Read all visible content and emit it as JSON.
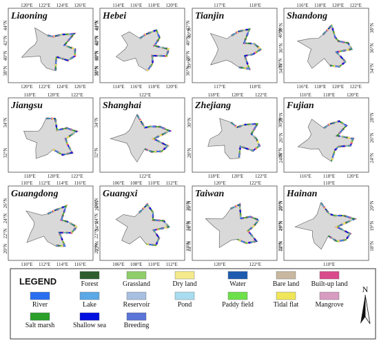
{
  "panels": [
    {
      "name": "Liaoning",
      "lon": [
        "120°E",
        "122°E",
        "124°E",
        "126°E"
      ],
      "lat": [
        "44°N",
        "42°N",
        "40°N",
        "38°N"
      ]
    },
    {
      "name": "Hebei",
      "lon": [
        "114°E",
        "116°E",
        "118°E",
        "120°E"
      ],
      "lat": [
        "42°N",
        "40°N",
        "38°N",
        "36°N"
      ]
    },
    {
      "name": "Tianjin",
      "lon": [
        "117°E",
        "118°E"
      ],
      "lat": [
        "40°N",
        "39°N"
      ]
    },
    {
      "name": "Shandong",
      "lon": [
        "116°E",
        "118°E",
        "120°E",
        "122°E"
      ],
      "lat": [
        "38°N",
        "36°N",
        "34°N"
      ]
    },
    {
      "name": "Jiangsu",
      "lon": [
        "118°E",
        "120°E",
        "122°E"
      ],
      "lat": [
        "34°N",
        "32°N"
      ]
    },
    {
      "name": "Shanghai",
      "lon": [
        "122°E"
      ],
      "lat": []
    },
    {
      "name": "Zhejiang",
      "lon": [
        "118°E",
        "120°E",
        "122°E"
      ],
      "lat": [
        "30°N",
        "28°N"
      ]
    },
    {
      "name": "Fujian",
      "lon": [
        "116°E",
        "118°E",
        "120°E"
      ],
      "lat": [
        "28°N",
        "26°N",
        "24°N"
      ]
    },
    {
      "name": "Guangdong",
      "lon": [
        "110°E",
        "112°E",
        "114°E",
        "116°E"
      ],
      "lat": [
        "26°N",
        "24°N",
        "22°N",
        "20°N"
      ]
    },
    {
      "name": "Guangxi",
      "lon": [
        "106°E",
        "108°E",
        "110°E",
        "112°E"
      ],
      "lat": [
        "26°N",
        "24°N",
        "22°N"
      ]
    },
    {
      "name": "Taiwan",
      "lon": [
        "120°E",
        "122°E"
      ],
      "lat": [
        "26°N",
        "24°N",
        "22°N"
      ]
    },
    {
      "name": "Hainan",
      "lon": [
        "110°E"
      ],
      "lat": [
        "20°N",
        "19°N",
        "18°N"
      ]
    }
  ],
  "legend": {
    "title": "LEGEND",
    "items": [
      {
        "name": "Forest",
        "color": "#2e5e2e"
      },
      {
        "name": "Grassland",
        "color": "#8fce6a"
      },
      {
        "name": "Dry land",
        "color": "#f5eb8c"
      },
      {
        "name": "Water",
        "color": "#1e5bb0"
      },
      {
        "name": "Bare land",
        "color": "#c9b8a0"
      },
      {
        "name": "Built-up land",
        "color": "#d94a8c"
      },
      {
        "name": "River",
        "color": "#2a6ef0"
      },
      {
        "name": "Lake",
        "color": "#5aa8e6"
      },
      {
        "name": "Reservoir",
        "color": "#a7bfe0"
      },
      {
        "name": "Pond",
        "color": "#a8dcf0"
      },
      {
        "name": "Paddy field",
        "color": "#6ee04a"
      },
      {
        "name": "Tidal flat",
        "color": "#f0e65a"
      },
      {
        "name": "Mangrove",
        "color": "#d89cc0"
      },
      {
        "name": "Salt marsh",
        "color": "#2aa02a"
      },
      {
        "name": "Shallow sea",
        "color": "#0010e0"
      },
      {
        "name": "Breeding",
        "color": "#5a74d8"
      }
    ],
    "north": "N"
  }
}
